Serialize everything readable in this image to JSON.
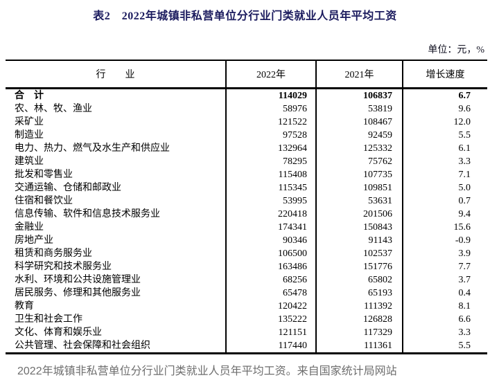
{
  "page": {
    "title": "表2　2022年城镇非私营单位分行业门类就业人员年平均工资",
    "unit_note": "单位：元，%",
    "footer": "2022年城镇非私营单位分行业门类就业人员年平均工资。来自国家统计局网站"
  },
  "colors": {
    "title_text": "#1b1b5e",
    "body_text": "#000000",
    "footer_text": "#6e6e6e",
    "table_border": "#000000",
    "background": "#ffffff"
  },
  "table": {
    "columns": [
      "行　　业",
      "2022年",
      "2021年",
      "增长速度"
    ],
    "rows": [
      {
        "industry": "合　计",
        "y2022": "114029",
        "y2021": "106837",
        "growth": "6.7",
        "bold": true
      },
      {
        "industry": "农、林、牧、渔业",
        "y2022": "58976",
        "y2021": "53819",
        "growth": "9.6"
      },
      {
        "industry": "采矿业",
        "y2022": "121522",
        "y2021": "108467",
        "growth": "12.0"
      },
      {
        "industry": "制造业",
        "y2022": "97528",
        "y2021": "92459",
        "growth": "5.5"
      },
      {
        "industry": "电力、热力、燃气及水生产和供应业",
        "y2022": "132964",
        "y2021": "125332",
        "growth": "6.1"
      },
      {
        "industry": "建筑业",
        "y2022": "78295",
        "y2021": "75762",
        "growth": "3.3"
      },
      {
        "industry": "批发和零售业",
        "y2022": "115408",
        "y2021": "107735",
        "growth": "7.1"
      },
      {
        "industry": "交通运输、仓储和邮政业",
        "y2022": "115345",
        "y2021": "109851",
        "growth": "5.0"
      },
      {
        "industry": "住宿和餐饮业",
        "y2022": "53995",
        "y2021": "53631",
        "growth": "0.7"
      },
      {
        "industry": "信息传输、软件和信息技术服务业",
        "y2022": "220418",
        "y2021": "201506",
        "growth": "9.4"
      },
      {
        "industry": "金融业",
        "y2022": "174341",
        "y2021": "150843",
        "growth": "15.6"
      },
      {
        "industry": "房地产业",
        "y2022": "90346",
        "y2021": "91143",
        "growth": "-0.9"
      },
      {
        "industry": "租赁和商务服务业",
        "y2022": "106500",
        "y2021": "102537",
        "growth": "3.9"
      },
      {
        "industry": "科学研究和技术服务业",
        "y2022": "163486",
        "y2021": "151776",
        "growth": "7.7"
      },
      {
        "industry": "水利、环境和公共设施管理业",
        "y2022": "68256",
        "y2021": "65802",
        "growth": "3.7"
      },
      {
        "industry": "居民服务、修理和其他服务业",
        "y2022": "65478",
        "y2021": "65193",
        "growth": "0.4"
      },
      {
        "industry": "教育",
        "y2022": "120422",
        "y2021": "111392",
        "growth": "8.1"
      },
      {
        "industry": "卫生和社会工作",
        "y2022": "135222",
        "y2021": "126828",
        "growth": "6.6"
      },
      {
        "industry": "文化、体育和娱乐业",
        "y2022": "121151",
        "y2021": "117329",
        "growth": "3.3"
      },
      {
        "industry": "公共管理、社会保障和社会组织",
        "y2022": "117440",
        "y2021": "111361",
        "growth": "5.5"
      }
    ]
  }
}
